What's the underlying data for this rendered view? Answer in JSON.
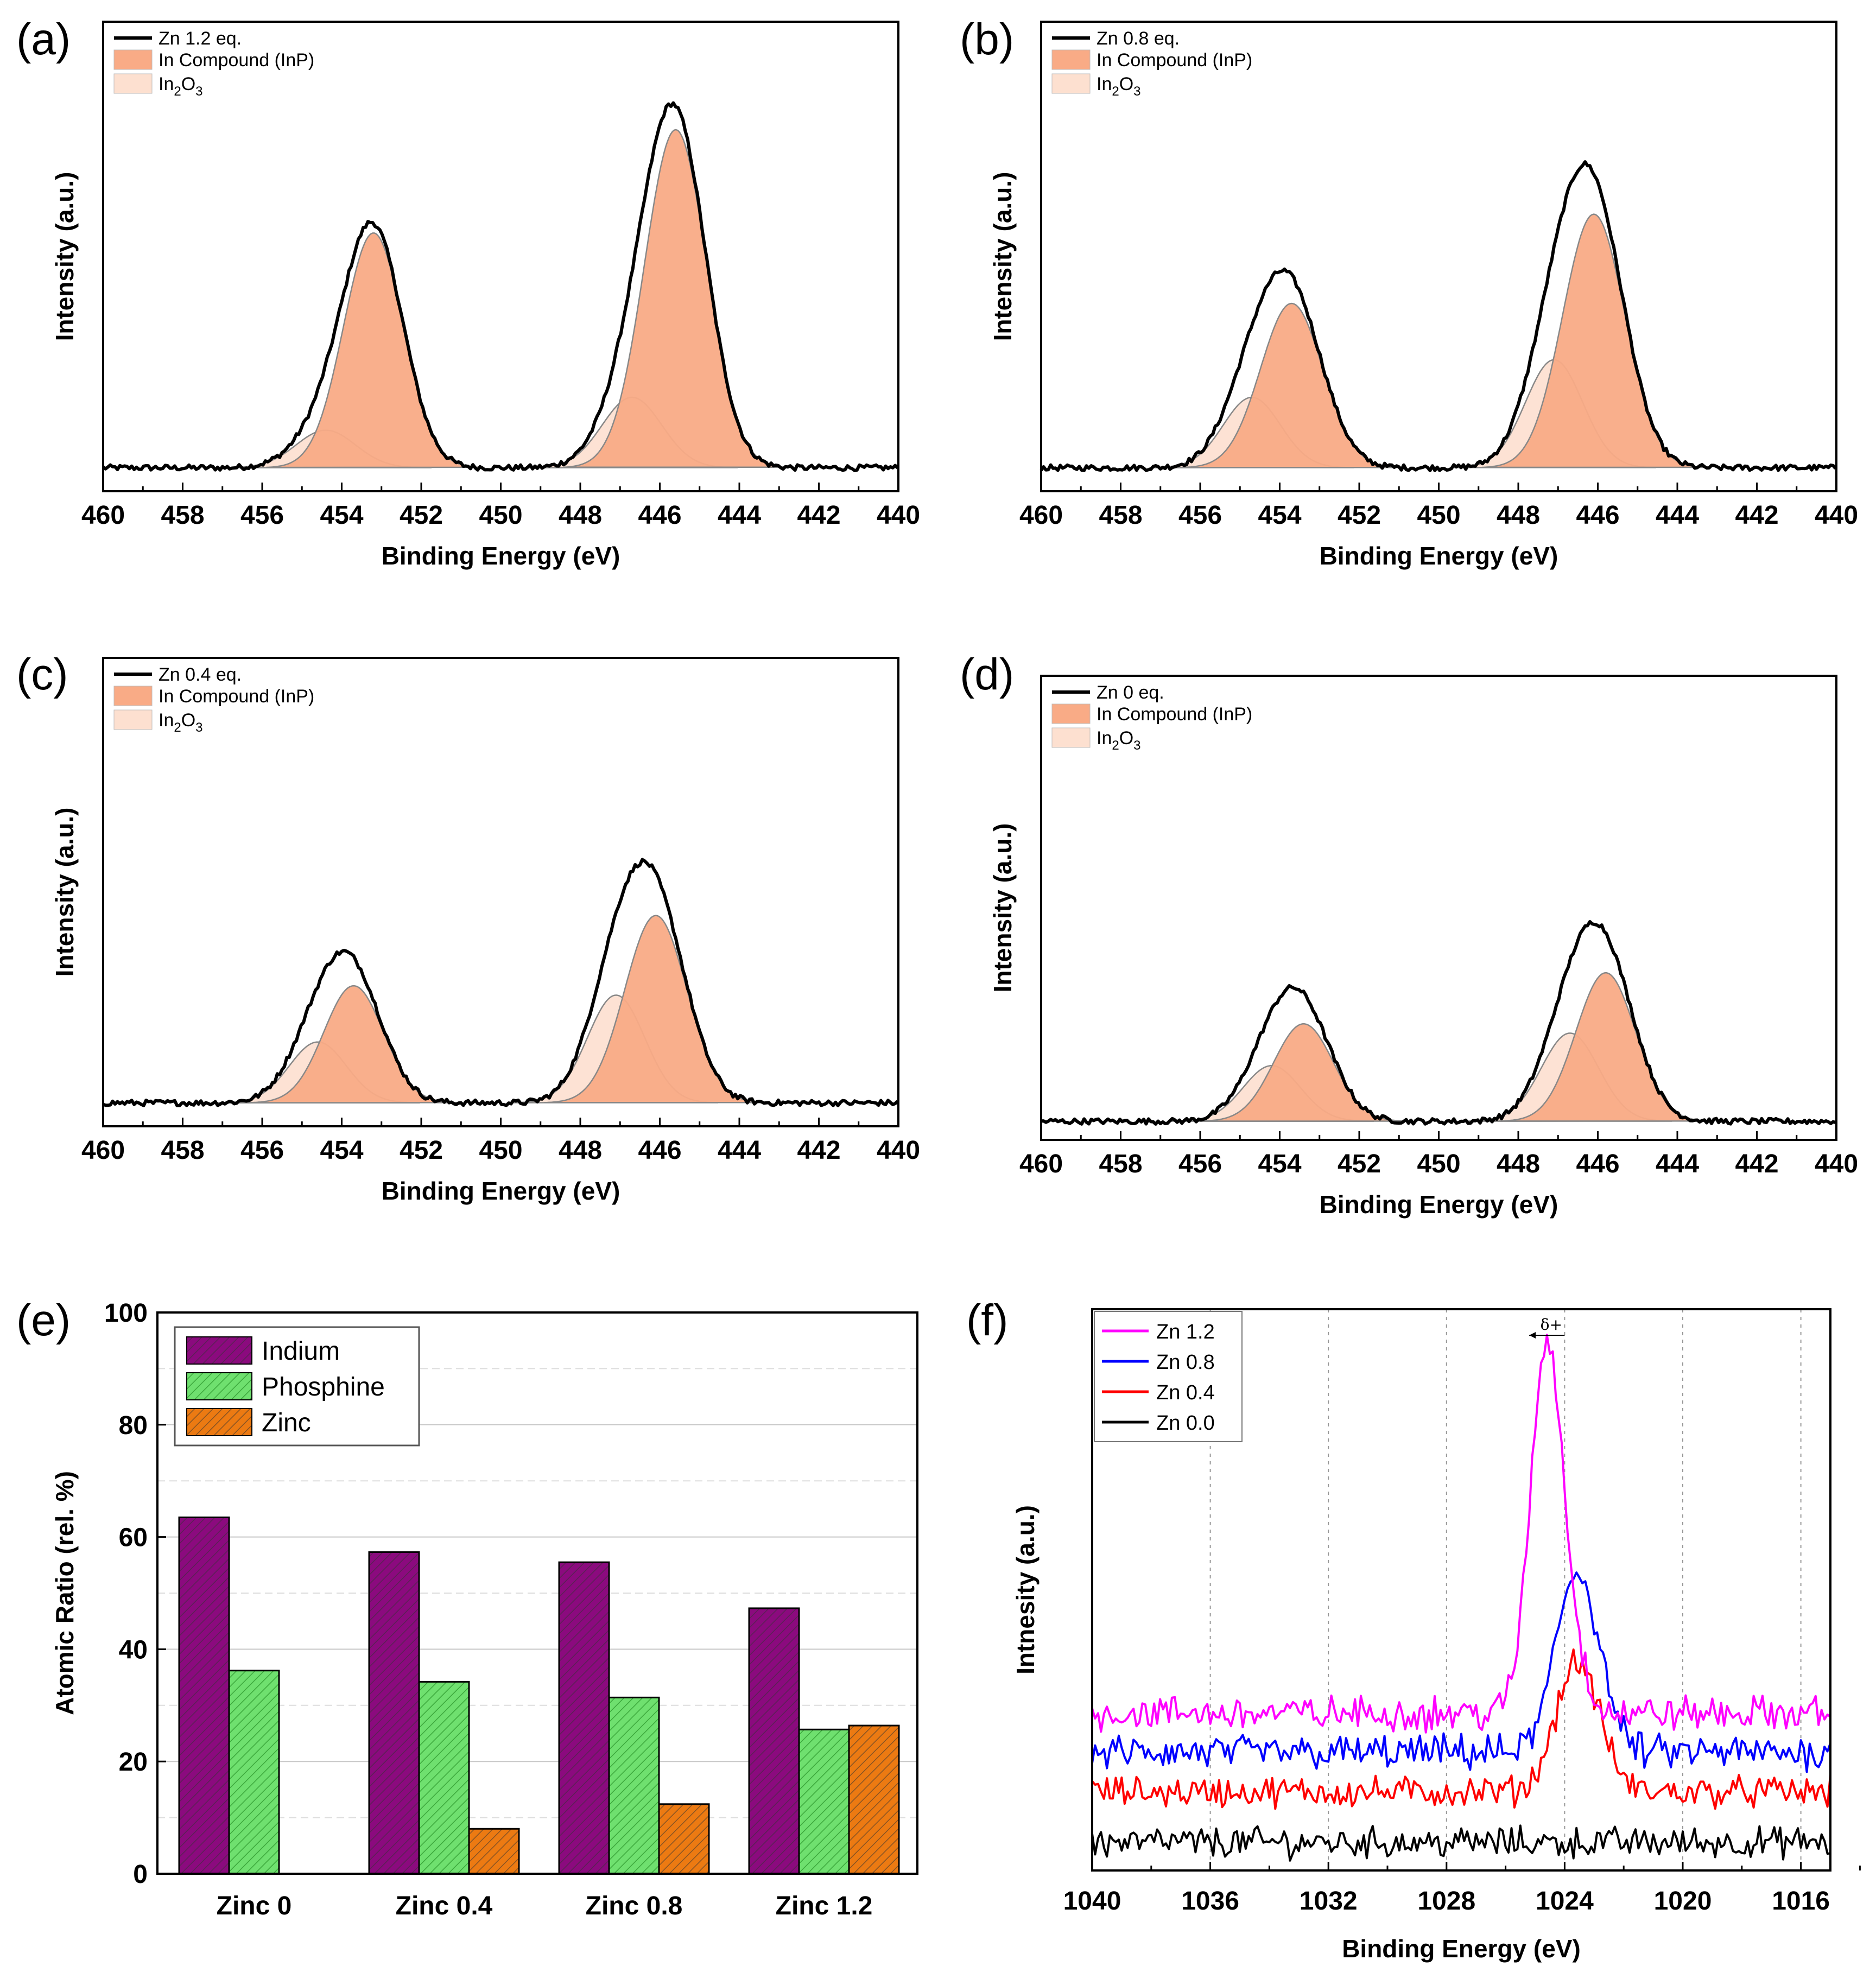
{
  "chart_data": [
    {
      "panel": "(a)",
      "type": "line",
      "xlabel": "Binding Energy (eV)",
      "ylabel": "Intensity (a.u.)",
      "xlim": [
        460,
        440
      ],
      "xticks": [
        460,
        458,
        456,
        454,
        452,
        450,
        448,
        446,
        444,
        442,
        440
      ],
      "legend": [
        {
          "label": "Zn 1.2 eq."
        },
        {
          "label": "In Compound (InP)"
        },
        {
          "label": "In",
          "sub1": "2",
          "mid": "O",
          "sub2": "3"
        }
      ],
      "baseline": 0.05,
      "inp_peaks": [
        {
          "center": 453.2,
          "height": 0.5,
          "width": 0.75
        },
        {
          "center": 445.6,
          "height": 0.72,
          "width": 0.78
        }
      ],
      "ox_peaks": [
        {
          "center": 454.4,
          "height": 0.08,
          "width": 0.75
        },
        {
          "center": 446.7,
          "height": 0.15,
          "width": 0.75
        }
      ]
    },
    {
      "panel": "(b)",
      "type": "line",
      "xlabel": "Binding Energy (eV)",
      "ylabel": "Intensity (a.u.)",
      "xlim": [
        460,
        440
      ],
      "xticks": [
        460,
        458,
        456,
        454,
        452,
        450,
        448,
        446,
        444,
        442,
        440
      ],
      "legend": [
        {
          "label": "Zn 0.8 eq."
        },
        {
          "label": "In Compound (InP)"
        },
        {
          "label": "In",
          "sub1": "2",
          "mid": "O",
          "sub2": "3"
        }
      ],
      "baseline": 0.05,
      "inp_peaks": [
        {
          "center": 453.7,
          "height": 0.35,
          "width": 0.78
        },
        {
          "center": 446.1,
          "height": 0.54,
          "width": 0.78
        }
      ],
      "ox_peaks": [
        {
          "center": 454.7,
          "height": 0.15,
          "width": 0.72
        },
        {
          "center": 447.1,
          "height": 0.23,
          "width": 0.72
        }
      ]
    },
    {
      "panel": "(c)",
      "type": "line",
      "xlabel": "Binding Energy (eV)",
      "ylabel": "Intensity (a.u.)",
      "xlim": [
        460,
        440
      ],
      "xticks": [
        460,
        458,
        456,
        454,
        452,
        450,
        448,
        446,
        444,
        442,
        440
      ],
      "legend": [
        {
          "label": "Zn 0.4 eq."
        },
        {
          "label": "In Compound (InP)"
        },
        {
          "label": "In",
          "sub1": "2",
          "mid": "O",
          "sub2": "3"
        }
      ],
      "baseline": 0.05,
      "inp_peaks": [
        {
          "center": 453.7,
          "height": 0.25,
          "width": 0.75
        },
        {
          "center": 446.1,
          "height": 0.4,
          "width": 0.78
        }
      ],
      "ox_peaks": [
        {
          "center": 454.6,
          "height": 0.13,
          "width": 0.72
        },
        {
          "center": 447.1,
          "height": 0.23,
          "width": 0.72
        }
      ]
    },
    {
      "panel": "(d)",
      "type": "line",
      "xlabel": "Binding Energy (eV)",
      "ylabel": "Intensity (a.u.)",
      "xlim": [
        460,
        440
      ],
      "xticks": [
        460,
        458,
        456,
        454,
        452,
        450,
        448,
        446,
        444,
        442,
        440
      ],
      "legend": [
        {
          "label": "Zn 0 eq."
        },
        {
          "label": "In Compound (InP)"
        },
        {
          "label": "In",
          "sub1": "2",
          "mid": "O",
          "sub2": "3"
        }
      ],
      "baseline": 0.04,
      "inp_peaks": [
        {
          "center": 453.4,
          "height": 0.21,
          "width": 0.75
        },
        {
          "center": 445.8,
          "height": 0.32,
          "width": 0.75
        }
      ],
      "ox_peaks": [
        {
          "center": 454.2,
          "height": 0.12,
          "width": 0.72
        },
        {
          "center": 446.7,
          "height": 0.19,
          "width": 0.72
        }
      ]
    },
    {
      "panel": "(e)",
      "type": "bar",
      "ylabel": "Atomic Ratio (rel. %)",
      "xlabel": "",
      "ylim": [
        0,
        100
      ],
      "yticks": [
        0,
        20,
        40,
        60,
        80,
        100
      ],
      "categories": [
        "Zinc 0",
        "Zinc 0.4",
        "Zinc 0.8",
        "Zinc 1.2"
      ],
      "series": [
        {
          "name": "Indium",
          "color": "#8b0a7e",
          "values": [
            63.5,
            57.3,
            55.5,
            47.3
          ]
        },
        {
          "name": "Phosphine",
          "color": "#6fe06f",
          "values": [
            36.2,
            34.2,
            31.4,
            25.7
          ]
        },
        {
          "name": "Zinc",
          "color": "#ec7a12",
          "values": [
            0,
            8.0,
            12.4,
            26.4
          ]
        }
      ]
    },
    {
      "panel": "(f)",
      "type": "line",
      "xlabel": "Binding Energy (eV)",
      "ylabel": "Intnesity (a.u.)",
      "xlim": [
        1040,
        1015
      ],
      "xticks": [
        1040,
        1036,
        1032,
        1028,
        1024,
        1020,
        1016
      ],
      "annotation": "δ+",
      "series": [
        {
          "name": "Zn 1.2",
          "color": "#ff00ff",
          "base": 0.28,
          "peak_center": 1024.6,
          "peak_height": 0.66,
          "peak_width": 0.55,
          "noise": 0.025
        },
        {
          "name": "Zn 0.8",
          "color": "#0000ff",
          "base": 0.21,
          "peak_center": 1023.6,
          "peak_height": 0.32,
          "peak_width": 0.7,
          "noise": 0.025
        },
        {
          "name": "Zn 0.4",
          "color": "#ff0000",
          "base": 0.14,
          "peak_center": 1023.6,
          "peak_height": 0.23,
          "peak_width": 0.7,
          "noise": 0.022
        },
        {
          "name": "Zn 0.0",
          "color": "#000000",
          "base": 0.05,
          "peak_center": 1024.0,
          "peak_height": 0.0,
          "peak_width": 1.0,
          "noise": 0.022
        }
      ]
    }
  ],
  "colors": {
    "inp_fill": "#f9ab86",
    "ox_fill": "#fde0d0",
    "component_line": "#888888"
  }
}
